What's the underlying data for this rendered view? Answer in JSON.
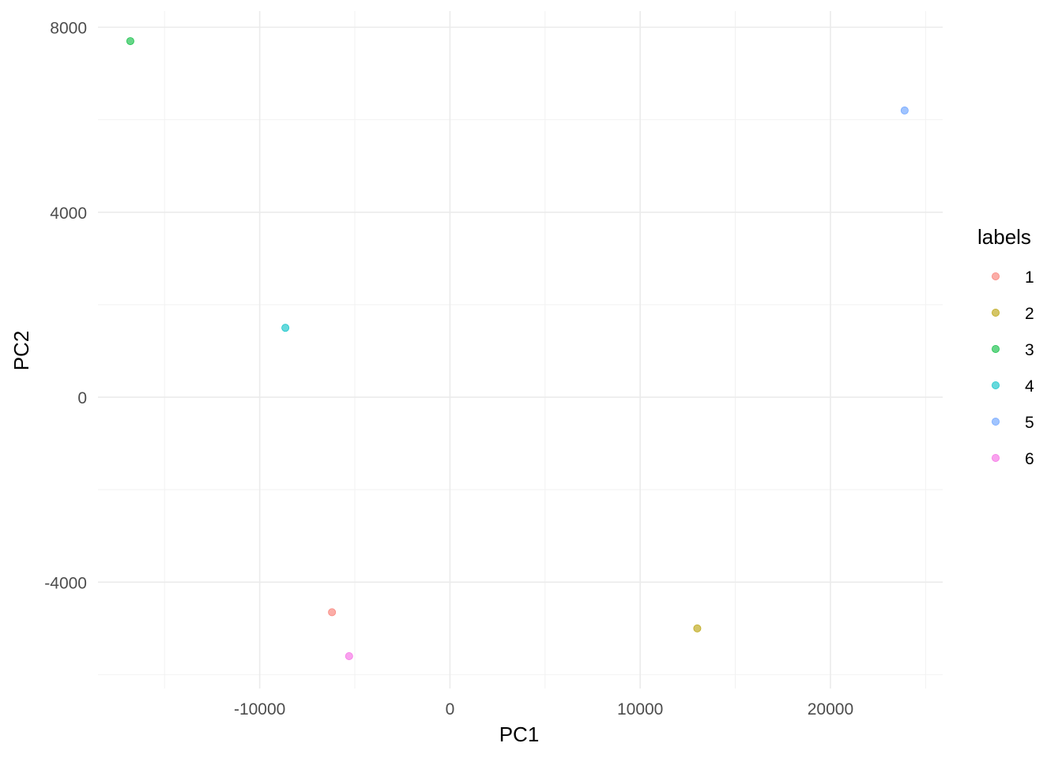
{
  "chart_data": {
    "type": "scatter",
    "title": "",
    "xlabel": "PC1",
    "ylabel": "PC2",
    "xlim": [
      -18500,
      25900
    ],
    "ylim": [
      -6300,
      8350
    ],
    "x_ticks": [
      -10000,
      0,
      10000,
      20000
    ],
    "x_tick_labels": [
      "-10000",
      "0",
      "10000",
      "20000"
    ],
    "y_ticks": [
      -4000,
      0,
      4000,
      8000
    ],
    "y_tick_labels": [
      "-4000",
      "0",
      "4000",
      "8000"
    ],
    "x_minor_ticks": [
      -15000,
      -5000,
      5000,
      15000,
      25000
    ],
    "y_minor_ticks": [
      -6000,
      -2000,
      2000,
      6000
    ],
    "grid": true,
    "legend": {
      "title": "labels",
      "placement": "right",
      "entries": [
        "1",
        "2",
        "3",
        "4",
        "5",
        "6"
      ]
    },
    "series": [
      {
        "name": "1",
        "color": "#F8766D",
        "x": -6200,
        "y": -4650
      },
      {
        "name": "2",
        "color": "#B79F00",
        "x": 13000,
        "y": -5000
      },
      {
        "name": "3",
        "color": "#00BA38",
        "x": -16800,
        "y": 7700
      },
      {
        "name": "4",
        "color": "#00BFC4",
        "x": -8650,
        "y": 1500
      },
      {
        "name": "5",
        "color": "#619CFF",
        "x": 23900,
        "y": 6200
      },
      {
        "name": "6",
        "color": "#F564E3",
        "x": -5300,
        "y": -5600
      }
    ]
  }
}
